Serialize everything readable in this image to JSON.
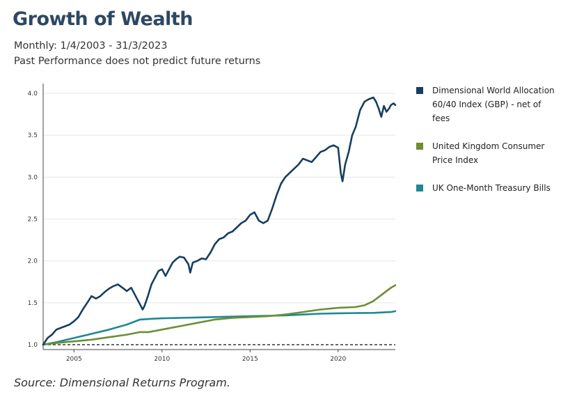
{
  "header": {
    "title": "Growth of Wealth",
    "subtitle_line1": "Monthly: 1/4/2003 - 31/3/2023",
    "subtitle_line2": "Past Performance does not predict future returns"
  },
  "footer": {
    "source": "Source: Dimensional Returns Program."
  },
  "legend": [
    {
      "label": "Dimensional World Allocation 60/40 Index (GBP) - net of fees",
      "color": "#173e5f"
    },
    {
      "label": "United Kingdom Consumer Price Index",
      "color": "#6b8e35"
    },
    {
      "label": "UK One-Month Treasury Bills",
      "color": "#1f8794"
    }
  ],
  "chart_data": {
    "type": "line",
    "title": "Growth of Wealth",
    "xlabel": "",
    "ylabel": "",
    "xlim": [
      2003.25,
      2023.25
    ],
    "ylim": [
      1.0,
      4.1
    ],
    "y_ticks": [
      "1.0",
      "1.5",
      "2.0",
      "2.5",
      "3.0",
      "3.5",
      "4.0"
    ],
    "x_ticks": [
      "2005",
      "2010",
      "2015",
      "2020"
    ],
    "grid": "horizontal",
    "legend_position": "right",
    "baseline": {
      "value": 1.0,
      "style": "dashed"
    },
    "series": [
      {
        "name": "Dimensional World Allocation 60/40 Index (GBP) - net of fees",
        "color": "#173e5f",
        "x": [
          2003.25,
          2003.5,
          2003.75,
          2004.0,
          2004.25,
          2004.5,
          2004.75,
          2005.0,
          2005.25,
          2005.5,
          2005.75,
          2006.0,
          2006.25,
          2006.5,
          2006.75,
          2007.0,
          2007.25,
          2007.5,
          2007.75,
          2008.0,
          2008.25,
          2008.5,
          2008.75,
          2008.9,
          2009.0,
          2009.2,
          2009.4,
          2009.6,
          2009.8,
          2010.0,
          2010.2,
          2010.4,
          2010.6,
          2010.8,
          2011.0,
          2011.25,
          2011.5,
          2011.6,
          2011.75,
          2012.0,
          2012.25,
          2012.5,
          2012.75,
          2013.0,
          2013.25,
          2013.5,
          2013.75,
          2014.0,
          2014.25,
          2014.5,
          2014.75,
          2015.0,
          2015.25,
          2015.5,
          2015.75,
          2016.0,
          2016.25,
          2016.5,
          2016.75,
          2017.0,
          2017.25,
          2017.5,
          2017.75,
          2018.0,
          2018.25,
          2018.5,
          2018.75,
          2019.0,
          2019.25,
          2019.5,
          2019.75,
          2020.0,
          2020.15,
          2020.25,
          2020.4,
          2020.6,
          2020.8,
          2021.0,
          2021.25,
          2021.5,
          2021.75,
          2022.0,
          2022.15,
          2022.3,
          2022.45,
          2022.6,
          2022.75,
          2022.9,
          2023.0,
          2023.15,
          2023.25
        ],
        "values": [
          1.0,
          1.08,
          1.12,
          1.18,
          1.2,
          1.22,
          1.24,
          1.28,
          1.33,
          1.42,
          1.5,
          1.58,
          1.55,
          1.58,
          1.63,
          1.67,
          1.7,
          1.72,
          1.68,
          1.64,
          1.68,
          1.58,
          1.48,
          1.42,
          1.46,
          1.58,
          1.72,
          1.8,
          1.88,
          1.9,
          1.82,
          1.9,
          1.98,
          2.02,
          2.05,
          2.04,
          1.96,
          1.86,
          1.98,
          2.0,
          2.03,
          2.02,
          2.1,
          2.2,
          2.26,
          2.28,
          2.33,
          2.35,
          2.4,
          2.45,
          2.48,
          2.55,
          2.58,
          2.48,
          2.45,
          2.48,
          2.62,
          2.78,
          2.92,
          3.0,
          3.05,
          3.1,
          3.15,
          3.22,
          3.2,
          3.18,
          3.24,
          3.3,
          3.32,
          3.36,
          3.38,
          3.35,
          3.05,
          2.95,
          3.15,
          3.3,
          3.5,
          3.6,
          3.8,
          3.9,
          3.93,
          3.95,
          3.9,
          3.82,
          3.72,
          3.85,
          3.78,
          3.82,
          3.86,
          3.88,
          3.86
        ]
      },
      {
        "name": "United Kingdom Consumer Price Index",
        "color": "#6b8e35",
        "x": [
          2003.25,
          2004,
          2005,
          2006,
          2007,
          2008,
          2008.75,
          2009.25,
          2010,
          2011,
          2012,
          2013,
          2014,
          2015,
          2016,
          2017,
          2018,
          2019,
          2020,
          2021,
          2021.5,
          2022,
          2022.5,
          2023,
          2023.25
        ],
        "values": [
          1.0,
          1.02,
          1.04,
          1.06,
          1.09,
          1.12,
          1.15,
          1.15,
          1.18,
          1.22,
          1.26,
          1.3,
          1.32,
          1.33,
          1.34,
          1.36,
          1.39,
          1.42,
          1.44,
          1.45,
          1.47,
          1.52,
          1.6,
          1.68,
          1.71
        ]
      },
      {
        "name": "UK One-Month Treasury Bills",
        "color": "#1f8794",
        "x": [
          2003.25,
          2004,
          2005,
          2006,
          2007,
          2008,
          2008.75,
          2009.5,
          2010,
          2011,
          2012,
          2013,
          2014,
          2015,
          2016,
          2017,
          2018,
          2019,
          2020,
          2021,
          2022,
          2023,
          2023.25
        ],
        "values": [
          1.0,
          1.03,
          1.08,
          1.13,
          1.18,
          1.24,
          1.3,
          1.31,
          1.315,
          1.32,
          1.325,
          1.33,
          1.335,
          1.34,
          1.345,
          1.35,
          1.36,
          1.37,
          1.375,
          1.377,
          1.38,
          1.39,
          1.4
        ]
      }
    ]
  }
}
